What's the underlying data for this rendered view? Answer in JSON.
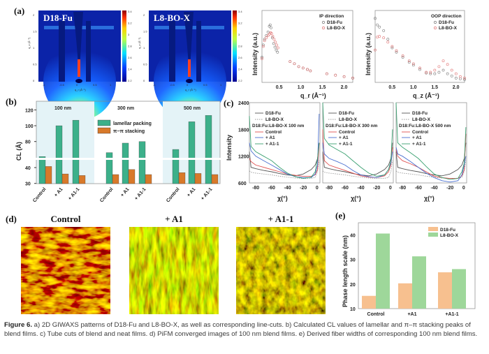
{
  "panel_labels": {
    "a": "(a)",
    "b": "(b)",
    "c": "(c)",
    "d": "(d)",
    "e": "(e)"
  },
  "colors": {
    "lamellar": "#3cb08a",
    "pipi": "#d8792a",
    "d18": "#555555",
    "l8": "#999999",
    "control": "#e05050",
    "a1": "#4a70d0",
    "a11": "#3aa070",
    "e_d18": "#f7c08f",
    "e_l8": "#9ed79a",
    "giwaxs_bg": "#0b23a8"
  },
  "giwaxs": {
    "images": [
      {
        "title": "D18-Fu"
      },
      {
        "title": "L8-BO-X"
      }
    ],
    "colorbar_ticks": [
      "3.4",
      "3.2",
      "3",
      "2.8",
      "2.6",
      "2.4",
      "2.2"
    ],
    "qz_ticks": [
      "2",
      "1.5",
      "1",
      "0.5",
      "0"
    ],
    "qr_ticks": [
      "-1",
      "-0.5",
      "0",
      "0.5",
      "1"
    ],
    "qz_label": "q_z (Å⁻¹)",
    "qr_label": "q_r (Å⁻¹)"
  },
  "chart_data": [
    {
      "id": "a-ip",
      "type": "scatter",
      "title": "IP direction",
      "ylabel": "Intensity (a.u.)",
      "xlabel": "q_r (Å⁻¹)",
      "xlim": [
        0.1,
        2.2
      ],
      "xticks": [
        "0.5",
        "1.0",
        "1.5",
        "2.0"
      ],
      "series": [
        {
          "name": "D18-Fu",
          "x": [
            0.1,
            0.13,
            0.16,
            0.2,
            0.24,
            0.27,
            0.29,
            0.31,
            0.34,
            0.37,
            0.4,
            0.43,
            0.46,
            0.75,
            0.85,
            0.95,
            1.05,
            1.15,
            1.22,
            1.6,
            1.8,
            2.0,
            2.2
          ],
          "y": [
            0.35,
            0.52,
            0.6,
            0.65,
            0.7,
            0.78,
            0.8,
            0.76,
            0.62,
            0.54,
            0.49,
            0.45,
            0.42,
            0.29,
            0.26,
            0.22,
            0.2,
            0.18,
            0.16,
            0.12,
            0.1,
            0.08,
            0.06
          ]
        },
        {
          "name": "L8-BO-X",
          "x": [
            0.1,
            0.13,
            0.16,
            0.2,
            0.24,
            0.27,
            0.3,
            0.32,
            0.35,
            0.38,
            0.41,
            0.44,
            0.47,
            0.75,
            0.85,
            0.95,
            1.05,
            1.15,
            1.22,
            1.6,
            1.8,
            2.0,
            2.2
          ],
          "y": [
            0.33,
            0.5,
            0.58,
            0.62,
            0.65,
            0.67,
            0.69,
            0.68,
            0.64,
            0.6,
            0.56,
            0.52,
            0.48,
            0.29,
            0.26,
            0.22,
            0.2,
            0.18,
            0.16,
            0.12,
            0.1,
            0.08,
            0.06
          ]
        }
      ]
    },
    {
      "id": "a-oop",
      "type": "scatter",
      "title": "OOP direction",
      "ylabel": "Intensity (a.u.)",
      "xlabel": "q_z (Å⁻¹)",
      "xlim": [
        0.1,
        2.2
      ],
      "xticks": [
        "0.5",
        "1.0",
        "1.5",
        "2.0"
      ],
      "series": [
        {
          "name": "D18-Fu",
          "x": [
            0.1,
            0.15,
            0.2,
            0.3,
            0.4,
            0.5,
            0.6,
            0.75,
            0.9,
            1.0,
            1.15,
            1.3,
            1.4,
            1.5,
            1.6,
            1.7,
            1.8,
            1.9,
            2.0,
            2.1,
            2.2
          ],
          "y": [
            0.89,
            0.8,
            0.77,
            0.72,
            0.6,
            0.48,
            0.42,
            0.35,
            0.28,
            0.24,
            0.18,
            0.13,
            0.12,
            0.12,
            0.14,
            0.17,
            0.12,
            0.09,
            0.06,
            0.05,
            0.04
          ]
        },
        {
          "name": "L8-BO-X",
          "x": [
            0.1,
            0.15,
            0.2,
            0.3,
            0.4,
            0.5,
            0.6,
            0.75,
            0.9,
            1.0,
            1.15,
            1.3,
            1.4,
            1.5,
            1.6,
            1.7,
            1.8,
            1.9,
            2.0,
            2.1,
            2.2
          ],
          "y": [
            0.45,
            0.63,
            0.64,
            0.62,
            0.56,
            0.5,
            0.44,
            0.37,
            0.3,
            0.26,
            0.2,
            0.14,
            0.14,
            0.17,
            0.22,
            0.3,
            0.25,
            0.17,
            0.12,
            0.08,
            0.06
          ]
        }
      ]
    },
    {
      "id": "b",
      "type": "bar",
      "ylabel": "CL (Å)",
      "yticks": [
        "30",
        "40",
        "80",
        "100",
        "120"
      ],
      "axis_break": [
        45,
        58
      ],
      "groups": [
        "100 nm",
        "300 nm",
        "500 nm"
      ],
      "categories": [
        "Control",
        "+ A1",
        "+ A1-1"
      ],
      "legend": "top-center",
      "series": [
        {
          "name": "lamellar packing",
          "values": [
            [
              61,
              100,
              107
            ],
            [
              66,
              78,
              80
            ],
            [
              70,
              105,
              113
            ]
          ]
        },
        {
          "name": "π−π stacking",
          "values": [
            [
              40.7,
              36,
              35
            ],
            [
              35.6,
              38.8,
              35.6
            ],
            [
              36.8,
              36.3,
              35.6
            ]
          ]
        }
      ]
    },
    {
      "id": "c",
      "type": "line",
      "ylabel": "Intensity",
      "xlabel": "χ(°)",
      "ylim": [
        600,
        2400
      ],
      "xlim": [
        -88,
        0
      ],
      "yticks": [
        "600",
        "1200",
        "1800",
        "2400"
      ],
      "xticks": [
        "-80",
        "-60",
        "-40",
        "-20",
        "0"
      ],
      "x": [
        -88,
        -86,
        -80,
        -70,
        -60,
        -50,
        -40,
        -30,
        -20,
        -10,
        -5,
        -2,
        0
      ],
      "subplots": [
        {
          "legend_title": "D18:Fu:L8-BO-X 100 nm",
          "series": [
            {
              "name": "D18-Fu",
              "values": [
                1300,
                950,
                920,
                880,
                850,
                810,
                780,
                760,
                800,
                900,
                1000,
                1150,
                1500
              ]
            },
            {
              "name": "L8-BO-X",
              "values": [
                870,
                840,
                820,
                800,
                780,
                750,
                730,
                710,
                700,
                705,
                720,
                850,
                1100
              ]
            },
            {
              "name": "Control",
              "values": [
                1150,
                1080,
                1000,
                950,
                900,
                850,
                800,
                770,
                750,
                750,
                780,
                900,
                1500
              ]
            },
            {
              "name": "+ A1",
              "values": [
                1500,
                1320,
                1200,
                1100,
                1000,
                900,
                800,
                740,
                720,
                720,
                800,
                1000,
                2150
              ]
            },
            {
              "name": "+ A1-1",
              "values": [
                2100,
                1420,
                1300,
                1200,
                1100,
                950,
                820,
                740,
                700,
                730,
                850,
                1150,
                1500
              ]
            }
          ]
        },
        {
          "legend_title": "D18:Fu:L8-BO-X 300 nm",
          "series": [
            {
              "name": "D18-Fu",
              "values": [
                1300,
                950,
                920,
                880,
                850,
                810,
                780,
                760,
                800,
                900,
                1000,
                1150,
                1500
              ]
            },
            {
              "name": "L8-BO-X",
              "values": [
                870,
                840,
                820,
                800,
                780,
                750,
                730,
                710,
                700,
                705,
                720,
                850,
                1100
              ]
            },
            {
              "name": "Control",
              "values": [
                1800,
                1100,
                1000,
                940,
                880,
                820,
                760,
                730,
                720,
                760,
                850,
                1000,
                1400
              ]
            },
            {
              "name": "+ A1",
              "values": [
                1500,
                1250,
                1150,
                1080,
                1000,
                880,
                780,
                740,
                720,
                780,
                900,
                1050,
                1300
              ]
            },
            {
              "name": "+ A1-1",
              "values": [
                2400,
                1600,
                1450,
                1350,
                1250,
                1100,
                950,
                820,
                750,
                780,
                900,
                1100,
                1800
              ]
            }
          ]
        },
        {
          "legend_title": "D18:Fu:L8-BO-X 500 nm",
          "series": [
            {
              "name": "D18-Fu",
              "values": [
                1300,
                950,
                920,
                880,
                850,
                810,
                780,
                760,
                800,
                900,
                1000,
                1150,
                1500
              ]
            },
            {
              "name": "L8-BO-X",
              "values": [
                870,
                840,
                820,
                800,
                780,
                750,
                730,
                710,
                700,
                705,
                720,
                850,
                1100
              ]
            },
            {
              "name": "Control",
              "values": [
                1350,
                1200,
                1100,
                1030,
                950,
                850,
                750,
                720,
                700,
                700,
                760,
                900,
                1700
              ]
            },
            {
              "name": "+ A1",
              "values": [
                1400,
                1250,
                1200,
                1080,
                950,
                820,
                720,
                650,
                620,
                650,
                780,
                1000,
                1200
              ]
            },
            {
              "name": "+ A1-1",
              "values": [
                2400,
                1500,
                1400,
                1280,
                1150,
                970,
                800,
                720,
                680,
                700,
                850,
                1050,
                1850
              ]
            }
          ]
        }
      ]
    },
    {
      "id": "e",
      "type": "bar",
      "ylabel": "Phase length scale (nm)",
      "ylim": [
        10,
        45
      ],
      "yticks": [
        "10",
        "20",
        "30",
        "40"
      ],
      "categories": [
        "Control",
        "+A1",
        "+A1-1"
      ],
      "legend": "top-right",
      "series": [
        {
          "name": "D18-Fu",
          "values": [
            15.2,
            20.3,
            24.8
          ]
        },
        {
          "name": "L8-BO-X",
          "values": [
            40.6,
            31.3,
            26.1
          ]
        }
      ]
    }
  ],
  "pifm": {
    "titles": [
      "Control",
      "+ A1",
      "+ A1-1"
    ]
  },
  "caption": {
    "label": "Figure 6.",
    "text": " a) 2D GIWAXS patterns of D18-Fu and L8-BO-X, as well as corresponding line-cuts. b) Calculated CL values of lamellar and π–π stacking peaks of blend films. c) Tube cuts of blend and neat films. d) PiFM converged images of 100 nm blend films. e) Derived fiber widths of corresponding 100 nm blend films."
  }
}
